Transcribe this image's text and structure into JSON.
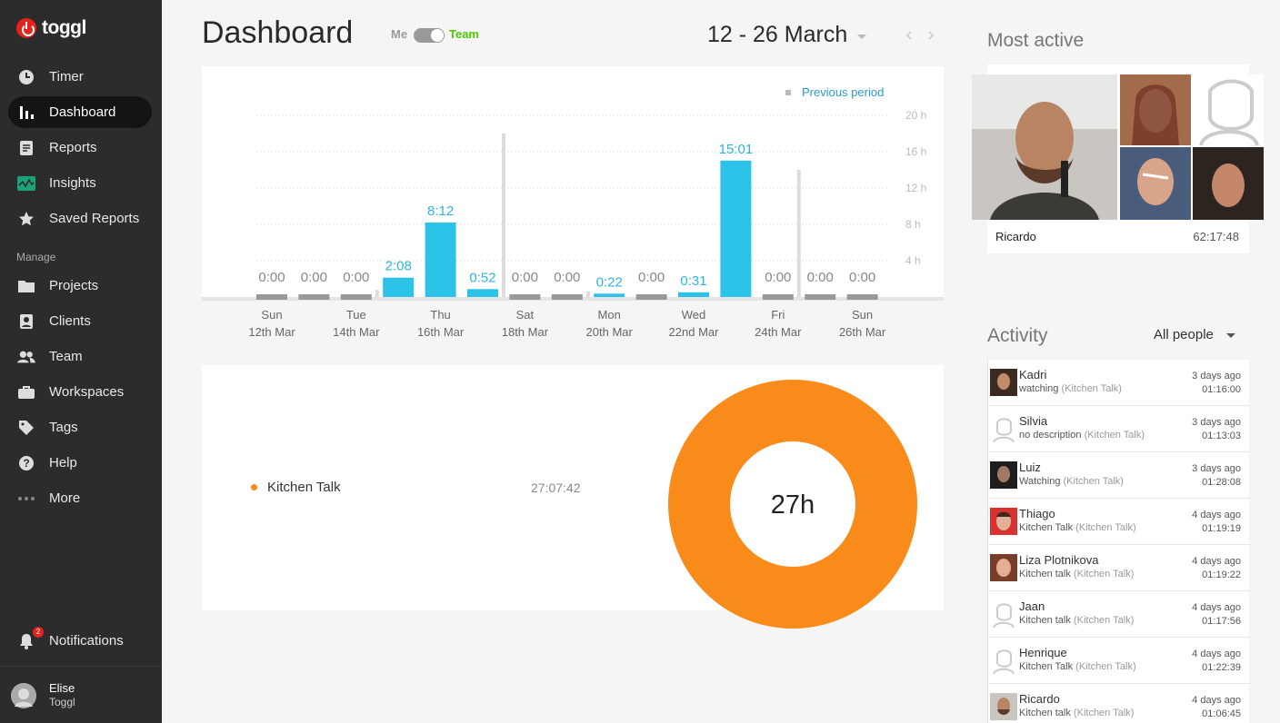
{
  "app": {
    "logo_text": "toggl"
  },
  "sidebar": {
    "items": [
      {
        "label": "Timer",
        "icon": "clock-icon"
      },
      {
        "label": "Dashboard",
        "icon": "bar-chart-icon"
      },
      {
        "label": "Reports",
        "icon": "document-icon"
      },
      {
        "label": "Insights",
        "icon": "pulse-icon"
      },
      {
        "label": "Saved Reports",
        "icon": "star-icon"
      }
    ],
    "manage_label": "Manage",
    "manage_items": [
      {
        "label": "Projects",
        "icon": "folder-icon"
      },
      {
        "label": "Clients",
        "icon": "person-card-icon"
      },
      {
        "label": "Team",
        "icon": "people-icon"
      },
      {
        "label": "Workspaces",
        "icon": "briefcase-icon"
      },
      {
        "label": "Tags",
        "icon": "tag-icon"
      },
      {
        "label": "Help",
        "icon": "help-icon"
      },
      {
        "label": "More",
        "icon": "dots-icon"
      }
    ],
    "notifications": {
      "label": "Notifications",
      "count": "2"
    },
    "user": {
      "name": "Elise",
      "workspace": "Toggl"
    }
  },
  "header": {
    "title": "Dashboard",
    "toggle_me": "Me",
    "toggle_team": "Team",
    "date_range": "12 - 26 March"
  },
  "colors": {
    "accent": "#2dc2e8",
    "brand": "#e5231c",
    "donut": "#f98b1b",
    "team_green": "#4bc800"
  },
  "chart_data": {
    "type": "bar",
    "legend": "Previous period",
    "y_ticks": [
      "20 h",
      "16 h",
      "12 h",
      "8 h",
      "4 h"
    ],
    "ylim": [
      0,
      20
    ],
    "days": [
      {
        "label": "0:00",
        "hours": 0,
        "prev": 0
      },
      {
        "label": "0:00",
        "hours": 0,
        "prev": 0
      },
      {
        "label": "0:00",
        "hours": 0,
        "prev": 0.8
      },
      {
        "label": "2:08",
        "hours": 2.13,
        "prev": 0
      },
      {
        "label": "8:12",
        "hours": 8.2,
        "prev": 0
      },
      {
        "label": "0:52",
        "hours": 0.87,
        "prev": 18
      },
      {
        "label": "0:00",
        "hours": 0,
        "prev": 0
      },
      {
        "label": "0:00",
        "hours": 0,
        "prev": 0.6
      },
      {
        "label": "0:22",
        "hours": 0.37,
        "prev": 0
      },
      {
        "label": "0:00",
        "hours": 0,
        "prev": 0
      },
      {
        "label": "0:31",
        "hours": 0.52,
        "prev": 0
      },
      {
        "label": "15:01",
        "hours": 15.02,
        "prev": 0
      },
      {
        "label": "0:00",
        "hours": 0,
        "prev": 14
      },
      {
        "label": "0:00",
        "hours": 0,
        "prev": 0
      },
      {
        "label": "0:00",
        "hours": 0,
        "prev": 0
      }
    ],
    "x_labels": [
      {
        "day": "Sun",
        "date": "12th Mar"
      },
      {
        "day": "Tue",
        "date": "14th Mar"
      },
      {
        "day": "Thu",
        "date": "16th Mar"
      },
      {
        "day": "Sat",
        "date": "18th Mar"
      },
      {
        "day": "Mon",
        "date": "20th Mar"
      },
      {
        "day": "Wed",
        "date": "22nd Mar"
      },
      {
        "day": "Fri",
        "date": "24th Mar"
      },
      {
        "day": "Sun",
        "date": "26th Mar"
      }
    ]
  },
  "donut": {
    "center_label": "27h",
    "projects": [
      {
        "name": "Kitchen Talk",
        "duration": "27:07:42",
        "color": "#f98b1b"
      }
    ]
  },
  "most_active": {
    "title": "Most active",
    "name": "Ricardo",
    "duration": "62:17:48"
  },
  "activity": {
    "title": "Activity",
    "filter": "All people",
    "items": [
      {
        "name": "Kadri",
        "desc": "watching",
        "project": "(Kitchen Talk)",
        "ago": "3 days ago",
        "duration": "01:16:00",
        "avatar": "photo"
      },
      {
        "name": "Silvia",
        "desc": "no description",
        "project": "(Kitchen Talk)",
        "ago": "3 days ago",
        "duration": "01:13:03",
        "avatar": "default"
      },
      {
        "name": "Luiz",
        "desc": "Watching",
        "project": "(Kitchen Talk)",
        "ago": "3 days ago",
        "duration": "01:28:08",
        "avatar": "photo"
      },
      {
        "name": "Thiago",
        "desc": "Kitchen Talk",
        "project": "(Kitchen Talk)",
        "ago": "4 days ago",
        "duration": "01:19:19",
        "avatar": "photo"
      },
      {
        "name": "Liza Plotnikova",
        "desc": "Kitchen talk",
        "project": "(Kitchen Talk)",
        "ago": "4 days ago",
        "duration": "01:19:22",
        "avatar": "photo"
      },
      {
        "name": "Jaan",
        "desc": "Kitchen talk",
        "project": "(Kitchen Talk)",
        "ago": "4 days ago",
        "duration": "01:17:56",
        "avatar": "default"
      },
      {
        "name": "Henrique",
        "desc": "Kitchen Talk",
        "project": "(Kitchen Talk)",
        "ago": "4 days ago",
        "duration": "01:22:39",
        "avatar": "default"
      },
      {
        "name": "Ricardo",
        "desc": "Kitchen talk",
        "project": "(Kitchen Talk)",
        "ago": "4 days ago",
        "duration": "01:06:45",
        "avatar": "photo"
      }
    ]
  }
}
